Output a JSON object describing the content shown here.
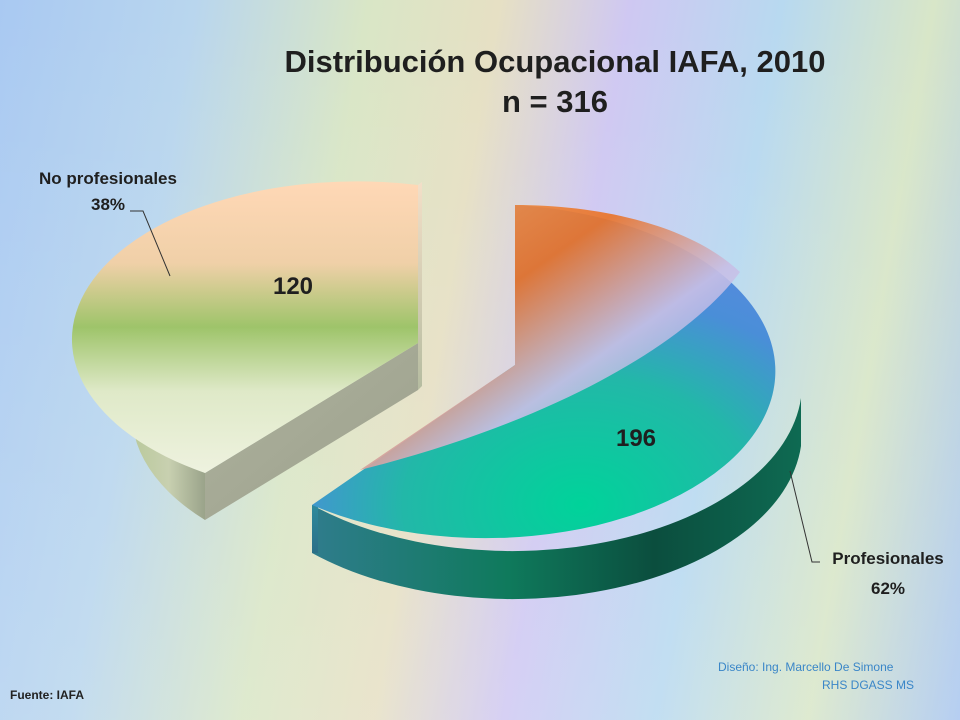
{
  "title": {
    "line1": "Distribución Ocupacional IAFA, 2010",
    "line2": "n = 316"
  },
  "chart_data": {
    "type": "pie",
    "title": "Distribución Ocupacional IAFA, 2010",
    "subtitle": "n = 316",
    "three_d": true,
    "exploded": true,
    "slices": [
      {
        "label": "Profesionales",
        "value": 196,
        "percent": "62%",
        "color": "#1fb98a"
      },
      {
        "label": "No profesionales",
        "value": 120,
        "percent": "38%",
        "color": "#a9c97a"
      }
    ]
  },
  "footer": {
    "source": "Fuente:  IAFA",
    "design_credit": "Diseño: Ing. Marcello De Simone",
    "design_org": "RHS DGASS MS"
  }
}
